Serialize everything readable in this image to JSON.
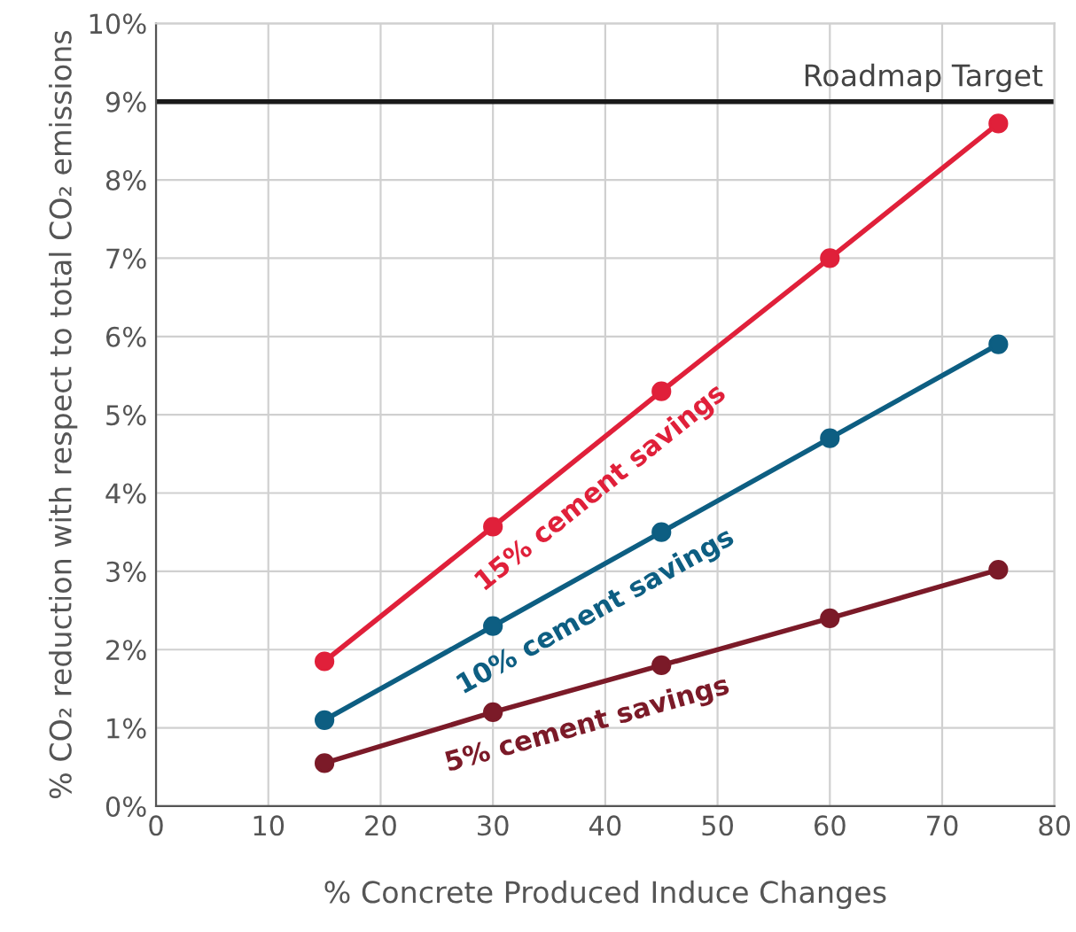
{
  "chart_data": {
    "type": "line",
    "xlabel": "% Concrete Produced Induce Changes",
    "ylabel": "% CO₂ reduction with respect to total CO₂ emissions",
    "x": [
      15,
      30,
      45,
      60,
      75
    ],
    "series": [
      {
        "name": "15% cement savings",
        "color": "#e0203a",
        "values": [
          1.85,
          3.57,
          5.3,
          7.0,
          8.72
        ]
      },
      {
        "name": "10% cement savings",
        "color": "#0d5e82",
        "values": [
          1.1,
          2.3,
          3.5,
          4.7,
          5.9
        ]
      },
      {
        "name": "5% cement savings",
        "color": "#7b1a28",
        "values": [
          0.55,
          1.2,
          1.8,
          2.4,
          3.02
        ]
      }
    ],
    "xlim": [
      0,
      80
    ],
    "xticks": [
      0,
      10,
      20,
      30,
      40,
      50,
      60,
      70,
      80
    ],
    "ylim": [
      0,
      10
    ],
    "yticks": [
      {
        "value": 0,
        "label": "0%"
      },
      {
        "value": 1,
        "label": "1%"
      },
      {
        "value": 2,
        "label": "2%"
      },
      {
        "value": 3,
        "label": "3%"
      },
      {
        "value": 4,
        "label": "4%"
      },
      {
        "value": 5,
        "label": "5%"
      },
      {
        "value": 6,
        "label": "6%"
      },
      {
        "value": 7,
        "label": "7%"
      },
      {
        "value": 8,
        "label": "8%"
      },
      {
        "value": 9,
        "label": "9%"
      },
      {
        "value": 10,
        "label": "10%"
      }
    ],
    "ref_lines": [
      {
        "axis": "y",
        "value": 9,
        "label": "Roadmap Target",
        "color": "#1a1a1a"
      }
    ],
    "grid": true,
    "legend": false,
    "marker": "circle",
    "line_style": "solid"
  }
}
